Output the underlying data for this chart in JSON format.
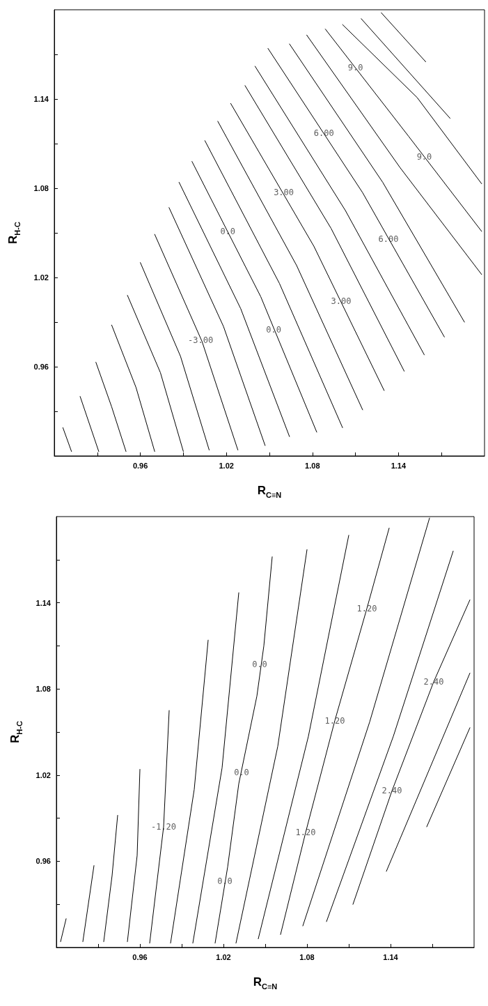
{
  "chart_data": [
    {
      "type": "line",
      "xlabel": "R$_{C≡N}$",
      "ylabel": "R$_{H-C}$",
      "marker": "none",
      "line_style": "solid",
      "grid": false,
      "xlim": [
        0.9,
        1.2
      ],
      "ylim": [
        0.9,
        1.2
      ],
      "xticks": [
        {
          "value": 0.93,
          "label": null
        },
        0.96,
        {
          "value": 0.99,
          "label": null
        },
        1.02,
        {
          "value": 1.05,
          "label": null
        },
        1.08,
        {
          "value": 1.11,
          "label": null
        },
        1.14,
        {
          "value": 1.17,
          "label": null
        }
      ],
      "yticks": [
        {
          "value": 0.93,
          "label": null
        },
        0.96,
        {
          "value": 0.99,
          "label": null
        },
        1.02,
        {
          "value": 1.05,
          "label": null
        },
        1.08,
        {
          "value": 1.11,
          "label": null
        },
        1.14,
        {
          "value": 1.17,
          "label": null
        }
      ],
      "series": [
        {
          "color": "#000000",
          "x": [
            0.906,
            0.912
          ],
          "values": [
            0.919,
            0.903
          ]
        },
        {
          "color": "#000000",
          "x": [
            0.918,
            0.931
          ],
          "values": [
            0.94,
            0.903
          ]
        },
        {
          "color": "#000000",
          "x": [
            0.929,
            0.94,
            0.95
          ],
          "values": [
            0.963,
            0.933,
            0.903
          ]
        },
        {
          "color": "#000000",
          "x": [
            0.94,
            0.957,
            0.97
          ],
          "values": [
            0.988,
            0.946,
            0.903
          ]
        },
        {
          "color": "#000000",
          "x": [
            0.951,
            0.974,
            0.99
          ],
          "values": [
            1.008,
            0.956,
            0.903
          ]
        },
        {
          "color": "#000000",
          "x": [
            0.96,
            0.988,
            1.008
          ],
          "values": [
            1.03,
            0.967,
            0.904
          ]
        },
        {
          "color": "#000000",
          "x": [
            0.97,
            1.003,
            1.028
          ],
          "values": [
            1.049,
            0.977,
            0.904
          ]
        },
        {
          "color": "#000000",
          "x": [
            0.98,
            1.018,
            1.047
          ],
          "values": [
            1.067,
            0.987,
            0.907
          ]
        },
        {
          "color": "#000000",
          "x": [
            0.987,
            1.03,
            1.064
          ],
          "values": [
            1.084,
            0.999,
            0.913
          ]
        },
        {
          "color": "#000000",
          "x": [
            0.996,
            1.044,
            1.083
          ],
          "values": [
            1.098,
            1.007,
            0.916
          ]
        },
        {
          "color": "#000000",
          "x": [
            1.005,
            1.057,
            1.101
          ],
          "values": [
            1.112,
            1.016,
            0.919
          ]
        },
        {
          "color": "#000000",
          "x": [
            1.014,
            1.069,
            1.115
          ],
          "values": [
            1.125,
            1.028,
            0.931
          ]
        },
        {
          "color": "#000000",
          "x": [
            1.023,
            1.081,
            1.13
          ],
          "values": [
            1.137,
            1.041,
            0.944
          ]
        },
        {
          "color": "#000000",
          "x": [
            1.033,
            1.093,
            1.144
          ],
          "values": [
            1.149,
            1.053,
            0.957
          ]
        },
        {
          "color": "#000000",
          "x": [
            1.04,
            1.103,
            1.158
          ],
          "values": [
            1.162,
            1.065,
            0.968
          ]
        },
        {
          "color": "#000000",
          "x": [
            1.049,
            1.115,
            1.172
          ],
          "values": [
            1.174,
            1.077,
            0.98
          ]
        },
        {
          "color": "#000000",
          "x": [
            1.064,
            1.129,
            1.186
          ],
          "values": [
            1.177,
            1.084,
            0.99
          ]
        },
        {
          "color": "#000000",
          "x": [
            1.076,
            1.141,
            1.198
          ],
          "values": [
            1.183,
            1.094,
            1.022
          ]
        },
        {
          "color": "#000000",
          "x": [
            1.089,
            1.147,
            1.198
          ],
          "values": [
            1.187,
            1.115,
            1.051
          ]
        },
        {
          "color": "#000000",
          "x": [
            1.101,
            1.153,
            1.198
          ],
          "values": [
            1.19,
            1.141,
            1.083
          ]
        },
        {
          "color": "#000000",
          "x": [
            1.114,
            1.176
          ],
          "values": [
            1.194,
            1.127
          ]
        },
        {
          "color": "#000000",
          "x": [
            1.128,
            1.159
          ],
          "values": [
            1.198,
            1.165
          ]
        }
      ],
      "annotations": [
        {
          "text": "-3.00",
          "x": 1.002,
          "y": 0.978
        },
        {
          "text": "0.0",
          "x": 1.021,
          "y": 1.051
        },
        {
          "text": "0.0",
          "x": 1.053,
          "y": 0.985
        },
        {
          "text": "3.00",
          "x": 1.06,
          "y": 1.077
        },
        {
          "text": "3.00",
          "x": 1.1,
          "y": 1.004
        },
        {
          "text": "6.00",
          "x": 1.088,
          "y": 1.117
        },
        {
          "text": "6.00",
          "x": 1.133,
          "y": 1.046
        },
        {
          "text": "9.0",
          "x": 1.11,
          "y": 1.161
        },
        {
          "text": "9.0",
          "x": 1.158,
          "y": 1.101
        }
      ]
    },
    {
      "type": "line",
      "xlabel": "R$_{C≡N}$",
      "ylabel": "R$_{H-C}$",
      "marker": "none",
      "line_style": "solid",
      "grid": false,
      "xlim": [
        0.9,
        1.2
      ],
      "ylim": [
        0.9,
        1.2
      ],
      "xticks": [
        {
          "value": 0.93,
          "label": null
        },
        0.96,
        {
          "value": 0.99,
          "label": null
        },
        1.02,
        {
          "value": 1.05,
          "label": null
        },
        1.08,
        {
          "value": 1.11,
          "label": null
        },
        1.14,
        {
          "value": 1.17,
          "label": null
        }
      ],
      "yticks": [
        {
          "value": 0.93,
          "label": null
        },
        0.96,
        {
          "value": 0.99,
          "label": null
        },
        1.02,
        {
          "value": 1.05,
          "label": null
        },
        1.08,
        {
          "value": 1.11,
          "label": null
        },
        1.14,
        {
          "value": 1.17,
          "label": null
        }
      ],
      "series": [
        {
          "color": "#000000",
          "x": [
            0.903,
            0.907
          ],
          "values": [
            0.904,
            0.92
          ]
        },
        {
          "color": "#000000",
          "x": [
            0.919,
            0.927
          ],
          "values": [
            0.904,
            0.957
          ]
        },
        {
          "color": "#000000",
          "x": [
            0.934,
            0.94,
            0.944
          ],
          "values": [
            0.904,
            0.95,
            0.992
          ]
        },
        {
          "color": "#000000",
          "x": [
            0.951,
            0.958,
            0.96
          ],
          "values": [
            0.904,
            0.964,
            1.024
          ]
        },
        {
          "color": "#000000",
          "x": [
            0.967,
            0.977,
            0.981
          ],
          "values": [
            0.903,
            0.984,
            1.065
          ]
        },
        {
          "color": "#000000",
          "x": [
            0.982,
            0.999,
            1.009
          ],
          "values": [
            0.903,
            1.01,
            1.114
          ]
        },
        {
          "color": "#000000",
          "x": [
            0.998,
            1.019,
            1.031
          ],
          "values": [
            0.903,
            1.025,
            1.147
          ]
        },
        {
          "color": "#000000",
          "x": [
            1.014,
            1.023,
            1.031,
            1.044,
            1.049,
            1.055
          ],
          "values": [
            0.903,
            0.956,
            1.014,
            1.075,
            1.11,
            1.172
          ]
        },
        {
          "color": "#000000",
          "x": [
            1.029,
            1.059,
            1.08
          ],
          "values": [
            0.903,
            1.04,
            1.177
          ]
        },
        {
          "color": "#000000",
          "x": [
            1.045,
            1.081,
            1.11
          ],
          "values": [
            0.906,
            1.047,
            1.187
          ]
        },
        {
          "color": "#000000",
          "x": [
            1.061,
            1.079,
            1.1,
            1.123,
            1.139
          ],
          "values": [
            0.909,
            0.98,
            1.058,
            1.136,
            1.192
          ]
        },
        {
          "color": "#000000",
          "x": [
            1.077,
            1.125,
            1.168
          ],
          "values": [
            0.915,
            1.057,
            1.199
          ]
        },
        {
          "color": "#000000",
          "x": [
            1.094,
            1.142,
            1.185
          ],
          "values": [
            0.918,
            1.047,
            1.176
          ]
        },
        {
          "color": "#000000",
          "x": [
            1.113,
            1.141,
            1.171,
            1.197
          ],
          "values": [
            0.93,
            1.009,
            1.085,
            1.142
          ]
        },
        {
          "color": "#000000",
          "x": [
            1.137,
            1.197
          ],
          "values": [
            0.953,
            1.091
          ]
        },
        {
          "color": "#000000",
          "x": [
            1.166,
            1.197
          ],
          "values": [
            0.984,
            1.053
          ]
        }
      ],
      "annotations": [
        {
          "text": "-1.20",
          "x": 0.977,
          "y": 0.984
        },
        {
          "text": "0.0",
          "x": 1.046,
          "y": 1.097
        },
        {
          "text": "0.0",
          "x": 1.033,
          "y": 1.022
        },
        {
          "text": "0.0",
          "x": 1.021,
          "y": 0.946
        },
        {
          "text": "1.20",
          "x": 1.079,
          "y": 0.98
        },
        {
          "text": "1.20",
          "x": 1.1,
          "y": 1.058
        },
        {
          "text": "1.20",
          "x": 1.123,
          "y": 1.136
        },
        {
          "text": "2.40",
          "x": 1.141,
          "y": 1.009
        },
        {
          "text": "2.40",
          "x": 1.171,
          "y": 1.085
        }
      ]
    }
  ]
}
